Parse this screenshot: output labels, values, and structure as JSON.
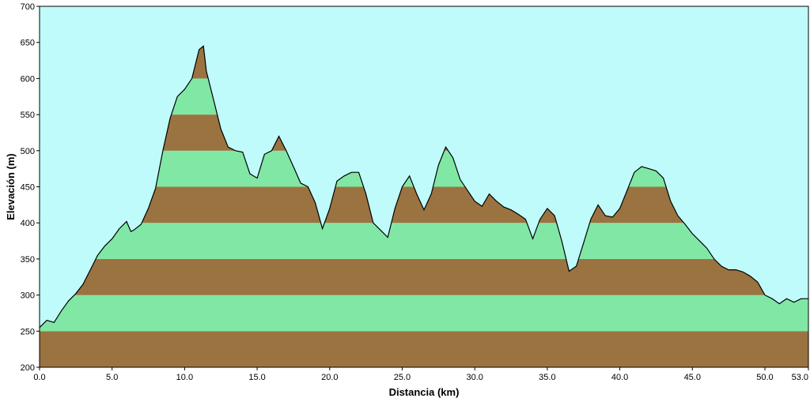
{
  "chart_data": {
    "type": "area",
    "title": "",
    "xlabel": "Distancia  (km)",
    "ylabel": "Elevación (m)",
    "xlim": [
      0,
      53
    ],
    "ylim": [
      200,
      700
    ],
    "x_ticks": [
      "0.0",
      "5.0",
      "10.0",
      "15.0",
      "20.0",
      "25.0",
      "30.0",
      "35.0",
      "40.0",
      "45.0",
      "50.0",
      "53.0"
    ],
    "y_ticks": [
      "200",
      "250",
      "300",
      "350",
      "400",
      "450",
      "500",
      "550",
      "600",
      "650",
      "700"
    ],
    "grid": false,
    "legend": "none",
    "colors": {
      "sky": "#c0fbfc",
      "band_brown": "#9b7340",
      "band_green": "#80e8a4",
      "profile_line": "#000000"
    },
    "band_step": 50,
    "x": [
      0,
      0.5,
      1.0,
      1.5,
      2.0,
      2.5,
      3.0,
      3.5,
      4.0,
      4.5,
      5.0,
      5.5,
      6.0,
      6.3,
      6.5,
      7.0,
      7.5,
      8.0,
      8.5,
      9.0,
      9.5,
      10.0,
      10.5,
      11.0,
      11.3,
      11.5,
      12.0,
      12.5,
      13.0,
      13.5,
      14.0,
      14.5,
      15.0,
      15.5,
      16.0,
      16.5,
      17.0,
      17.5,
      18.0,
      18.5,
      19.0,
      19.5,
      20.0,
      20.5,
      21.0,
      21.5,
      22.0,
      22.5,
      23.0,
      23.5,
      24.0,
      24.5,
      25.0,
      25.5,
      26.0,
      26.5,
      27.0,
      27.5,
      28.0,
      28.5,
      29.0,
      29.5,
      30.0,
      30.5,
      31.0,
      31.5,
      32.0,
      32.5,
      33.0,
      33.5,
      34.0,
      34.5,
      35.0,
      35.5,
      36.0,
      36.5,
      37.0,
      37.5,
      38.0,
      38.5,
      39.0,
      39.5,
      40.0,
      40.5,
      41.0,
      41.5,
      42.0,
      42.5,
      43.0,
      43.5,
      44.0,
      44.5,
      45.0,
      45.5,
      46.0,
      46.5,
      47.0,
      47.5,
      48.0,
      48.5,
      49.0,
      49.5,
      50.0,
      50.5,
      51.0,
      51.5,
      52.0,
      52.5,
      53.0
    ],
    "y": [
      255,
      265,
      262,
      278,
      292,
      302,
      315,
      335,
      355,
      368,
      378,
      392,
      402,
      388,
      390,
      398,
      420,
      448,
      500,
      545,
      575,
      585,
      600,
      640,
      645,
      610,
      570,
      530,
      505,
      500,
      498,
      468,
      462,
      495,
      500,
      520,
      500,
      478,
      455,
      450,
      428,
      392,
      420,
      458,
      465,
      470,
      470,
      440,
      400,
      390,
      380,
      420,
      450,
      465,
      440,
      418,
      440,
      480,
      505,
      490,
      460,
      445,
      430,
      423,
      440,
      430,
      422,
      418,
      412,
      405,
      378,
      405,
      420,
      410,
      375,
      333,
      340,
      372,
      405,
      425,
      410,
      408,
      420,
      445,
      470,
      478,
      475,
      472,
      462,
      430,
      410,
      398,
      385,
      375,
      365,
      350,
      340,
      335,
      335,
      332,
      326,
      318,
      300,
      295,
      288,
      295,
      290,
      295,
      295
    ]
  }
}
